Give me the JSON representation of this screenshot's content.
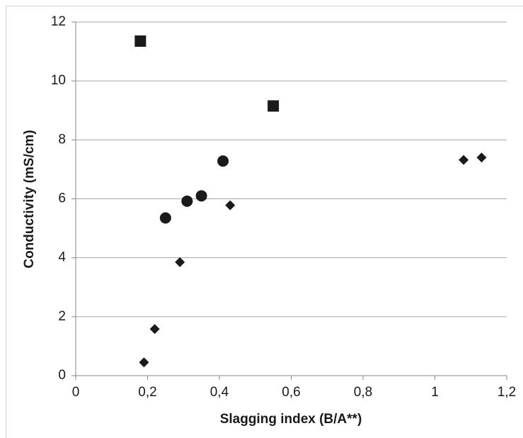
{
  "chart_data": {
    "type": "scatter",
    "x_label": "Slagging index (B/A**)",
    "y_label": "Conductivity (mS/cm)",
    "xlim": [
      0,
      1.2
    ],
    "xticks": [
      0,
      {
        "value": 0.2,
        "label": "0,2"
      },
      {
        "value": 0.4,
        "label": "0,4"
      },
      {
        "value": 0.6,
        "label": "0,6"
      },
      {
        "value": 0.8,
        "label": "0,8"
      },
      1,
      {
        "value": 1.2,
        "label": "1,2"
      }
    ],
    "ylim": [
      0,
      12
    ],
    "yticks": [
      0,
      2,
      4,
      6,
      8,
      10,
      12
    ],
    "grid": true,
    "series": [
      {
        "marker": "square",
        "color": "#1a1a1a",
        "x": [
          0.18,
          0.55
        ],
        "values": [
          11.35,
          9.15
        ]
      },
      {
        "marker": "circle",
        "color": "#1a1a1a",
        "x": [
          0.25,
          0.31,
          0.35,
          0.41
        ],
        "values": [
          5.35,
          5.92,
          6.1,
          7.28
        ]
      },
      {
        "marker": "diamond",
        "color": "#1a1a1a",
        "x": [
          0.19,
          0.22,
          0.29,
          0.43,
          1.08,
          1.13
        ],
        "values": [
          0.45,
          1.58,
          3.85,
          5.78,
          7.32,
          7.4
        ]
      }
    ]
  }
}
